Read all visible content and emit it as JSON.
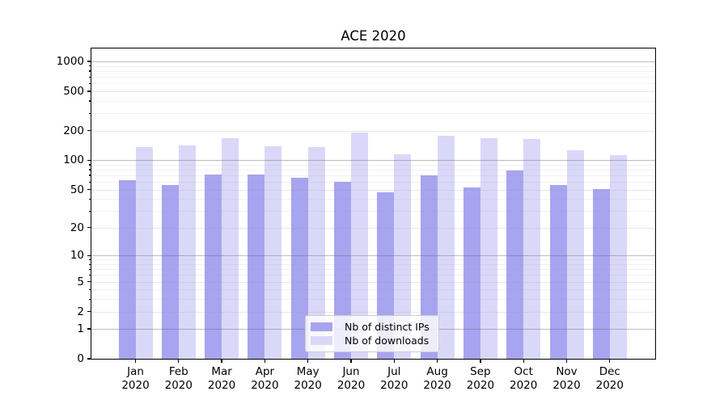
{
  "chart_data": {
    "type": "bar",
    "title": "ACE 2020",
    "xlabel": "",
    "ylabel": "",
    "year_label": "2020",
    "categories": [
      "Jan",
      "Feb",
      "Mar",
      "Apr",
      "May",
      "Jun",
      "Jul",
      "Aug",
      "Sep",
      "Oct",
      "Nov",
      "Dec"
    ],
    "series": [
      {
        "name": "Nb of distinct IPs",
        "color": "#a7a4f0",
        "values": [
          63,
          56,
          72,
          72,
          66,
          60,
          47,
          70,
          53,
          79,
          56,
          51
        ]
      },
      {
        "name": "Nb of downloads",
        "color": "#dad8f8",
        "values": [
          136,
          141,
          166,
          139,
          135,
          190,
          114,
          176,
          166,
          164,
          126,
          113
        ]
      }
    ],
    "yscale": "log10(value+1)",
    "yticks": [
      0,
      1,
      2,
      5,
      10,
      20,
      50,
      100,
      200,
      500,
      1000
    ],
    "ylim": [
      0,
      1350
    ],
    "grid": "both, drawn above bars",
    "legend_position": "lower center"
  },
  "colors": {
    "background": "#ffffff",
    "spine": "#000000",
    "major_grid": "#b4b4b4",
    "minor_grid": "#e6e6e6",
    "legend_border": "#cccccc"
  }
}
